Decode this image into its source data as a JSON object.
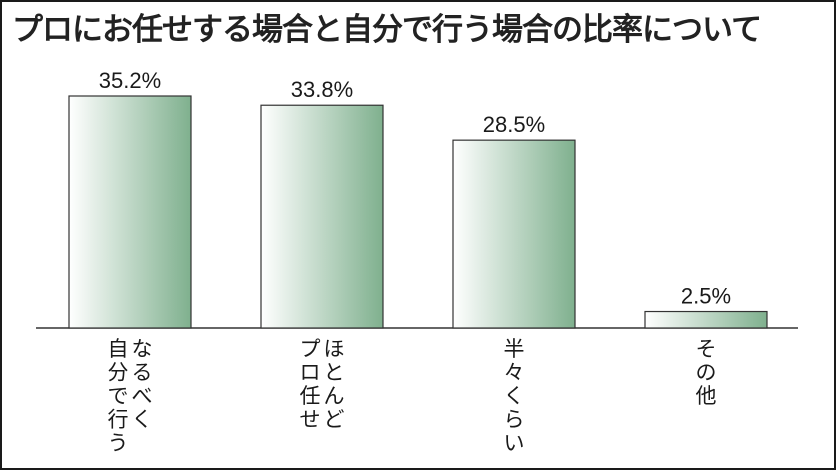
{
  "title": "プロにお任せする場合と自分で行う場合の比率について",
  "chart_data": {
    "type": "bar",
    "title": "プロにお任せする場合と自分で行う場合の比率について",
    "categories": [
      [
        "なるべく",
        "自分で行う"
      ],
      [
        "ほとんど",
        "プロ任せ"
      ],
      [
        "半々くらい"
      ],
      [
        "その他"
      ]
    ],
    "values": [
      35.2,
      33.8,
      28.5,
      2.5
    ],
    "value_labels": [
      "35.2%",
      "33.8%",
      "28.5%",
      "2.5%"
    ],
    "ylim": [
      0,
      40
    ],
    "grid": false,
    "bar_gradient": [
      "#ffffff",
      "#7fb08e"
    ]
  }
}
